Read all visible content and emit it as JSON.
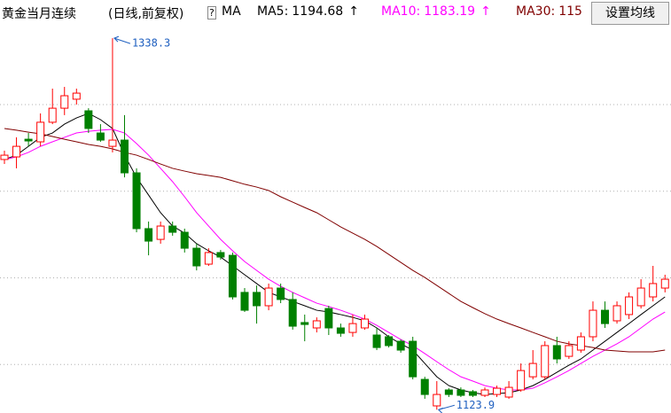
{
  "chart_data": {
    "type": "candlestick",
    "title": "黄金当月连续",
    "subtitle": "(日线,前复权)",
    "help": "?",
    "indicator": "MA",
    "button": "设置均线",
    "ylim": [
      1122,
      1345
    ],
    "gridlines": [
      1300,
      1250,
      1200,
      1150
    ],
    "grid": true,
    "up_color": "#ff0000",
    "down_color": "#008000",
    "candles": {
      "open": [
        1268.3,
        1269.8,
        1280.0,
        1278.5,
        1289.8,
        1297.9,
        1303.1,
        1296.4,
        1283.6,
        1275.9,
        1279.5,
        1260.6,
        1228.4,
        1222.2,
        1229.9,
        1226.3,
        1217.1,
        1207.9,
        1214.6,
        1213.0,
        1191.6,
        1191.6,
        1183.9,
        1194.1,
        1187.5,
        1174.2,
        1171.1,
        1182.3,
        1171.1,
        1168.5,
        1171.1,
        1167.0,
        1166.0,
        1163.4,
        1163.4,
        1141.4,
        1126.1,
        1135.3,
        1135.3,
        1134.3,
        1132.2,
        1132.7,
        1131.2,
        1135.3,
        1142.9,
        1142.9,
        1160.9,
        1154.7,
        1158.3,
        1166.0,
        1181.3,
        1175.2,
        1178.8,
        1183.9,
        1189.0,
        1194.1
      ],
      "high": [
        1273.4,
        1281.1,
        1283.6,
        1294.9,
        1309.2,
        1310.2,
        1309.2,
        1297.9,
        1288.7,
        1338.3,
        1293.9,
        1263.2,
        1232.5,
        1232.5,
        1232.5,
        1228.4,
        1219.7,
        1217.1,
        1216.1,
        1214.6,
        1194.1,
        1195.6,
        1196.7,
        1196.7,
        1191.6,
        1178.8,
        1177.2,
        1183.9,
        1173.6,
        1178.8,
        1178.8,
        1171.1,
        1167.0,
        1164.4,
        1166.0,
        1142.9,
        1140.4,
        1136.3,
        1136.8,
        1135.3,
        1136.8,
        1137.8,
        1140.4,
        1150.6,
        1158.3,
        1163.4,
        1166.0,
        1163.4,
        1168.5,
        1186.4,
        1186.4,
        1186.4,
        1191.6,
        1199.2,
        1206.9,
        1201.8
      ],
      "low": [
        1265.7,
        1263.2,
        1275.9,
        1275.9,
        1288.7,
        1293.9,
        1300.0,
        1283.6,
        1278.5,
        1272.4,
        1258.0,
        1226.3,
        1213.0,
        1219.7,
        1224.3,
        1214.6,
        1204.3,
        1206.9,
        1210.5,
        1187.5,
        1180.3,
        1173.6,
        1181.3,
        1185.4,
        1170.1,
        1163.4,
        1168.5,
        1167.0,
        1166.0,
        1166.0,
        1170.1,
        1158.3,
        1159.8,
        1156.8,
        1141.4,
        1130.2,
        1123.9,
        1131.2,
        1131.2,
        1131.2,
        1131.2,
        1131.2,
        1130.2,
        1134.3,
        1141.4,
        1141.4,
        1150.6,
        1153.2,
        1156.8,
        1163.4,
        1171.1,
        1173.6,
        1176.2,
        1182.3,
        1186.4,
        1191.6
      ],
      "close": [
        1270.8,
        1275.9,
        1279.0,
        1289.8,
        1297.9,
        1305.1,
        1306.6,
        1286.2,
        1279.5,
        1279.5,
        1260.6,
        1228.4,
        1221.2,
        1229.9,
        1226.3,
        1217.1,
        1206.9,
        1214.6,
        1212.0,
        1189.0,
        1181.3,
        1183.9,
        1194.1,
        1187.5,
        1172.1,
        1173.1,
        1175.2,
        1171.1,
        1168.0,
        1173.6,
        1176.2,
        1159.8,
        1160.9,
        1158.3,
        1142.9,
        1132.7,
        1132.7,
        1132.7,
        1132.2,
        1132.2,
        1135.3,
        1136.3,
        1136.8,
        1146.5,
        1150.6,
        1160.9,
        1153.2,
        1160.9,
        1166.0,
        1181.3,
        1173.6,
        1183.9,
        1189.0,
        1194.1,
        1196.7,
        1199.2
      ]
    },
    "series": [
      {
        "name": "MA5:",
        "color": "#000000",
        "legend_value": 1194.68,
        "legend_arrow": "↑",
        "values": [
          1268.3,
          1270.8,
          1275.9,
          1281.1,
          1283.6,
          1288.7,
          1292.3,
          1294.9,
          1291.3,
          1286.2,
          1270.8,
          1258.0,
          1247.8,
          1237.6,
          1229.9,
          1225.8,
          1219.7,
          1215.6,
          1212.0,
          1206.9,
          1201.8,
          1196.7,
          1191.6,
          1189.0,
          1186.4,
          1183.9,
          1181.3,
          1180.3,
          1178.8,
          1177.2,
          1175.2,
          1171.1,
          1166.0,
          1161.9,
          1158.3,
          1150.6,
          1142.9,
          1137.8,
          1135.3,
          1133.7,
          1132.7,
          1133.2,
          1133.7,
          1135.3,
          1137.8,
          1141.4,
          1145.5,
          1149.6,
          1153.2,
          1158.3,
          1163.4,
          1168.5,
          1173.6,
          1178.8,
          1183.9,
          1189.0
        ]
      },
      {
        "name": "MA10:",
        "color": "#ff00ff",
        "legend_value": 1183.19,
        "legend_arrow": "↑",
        "values": [
          1268.3,
          1269.8,
          1272.4,
          1275.9,
          1278.5,
          1281.1,
          1283.6,
          1284.6,
          1285.2,
          1285.7,
          1283.6,
          1277.5,
          1270.8,
          1263.2,
          1255.5,
          1246.8,
          1237.6,
          1229.9,
          1222.2,
          1215.6,
          1209.4,
          1204.3,
          1199.2,
          1195.1,
          1191.6,
          1188.5,
          1185.4,
          1183.4,
          1181.3,
          1178.8,
          1176.2,
          1172.6,
          1168.5,
          1164.4,
          1160.9,
          1156.3,
          1151.6,
          1147.0,
          1142.9,
          1140.4,
          1137.8,
          1136.3,
          1135.3,
          1135.3,
          1136.3,
          1139.4,
          1142.9,
          1146.5,
          1150.6,
          1154.7,
          1158.3,
          1161.9,
          1166.0,
          1171.1,
          1176.2,
          1180.3
        ]
      },
      {
        "name": "MA30:",
        "color": "#800000",
        "legend_value": "115",
        "values": [
          1286.2,
          1285.2,
          1284.1,
          1283.1,
          1281.6,
          1280.0,
          1278.5,
          1277.0,
          1275.9,
          1274.4,
          1272.4,
          1270.8,
          1268.3,
          1265.7,
          1263.2,
          1261.6,
          1260.1,
          1259.1,
          1258.0,
          1256.0,
          1254.0,
          1252.4,
          1250.4,
          1246.8,
          1243.7,
          1240.6,
          1237.6,
          1233.5,
          1229.4,
          1225.8,
          1222.2,
          1218.1,
          1213.5,
          1208.9,
          1204.3,
          1200.2,
          1195.6,
          1191.0,
          1186.4,
          1182.8,
          1179.3,
          1176.2,
          1173.6,
          1171.1,
          1168.5,
          1166.0,
          1163.4,
          1161.9,
          1160.9,
          1159.8,
          1158.3,
          1157.8,
          1157.3,
          1157.3,
          1157.3,
          1158.3
        ]
      }
    ],
    "annotations": [
      {
        "at": 9,
        "of": "high"
      },
      {
        "at": 36,
        "of": "low"
      }
    ]
  }
}
